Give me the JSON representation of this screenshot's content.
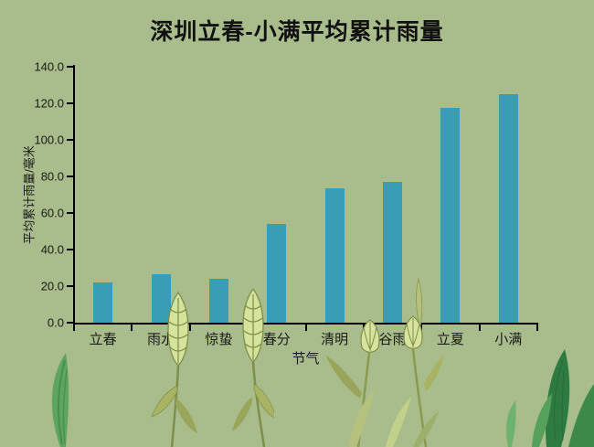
{
  "title": "深圳立春-小满平均累计雨量",
  "colors": {
    "background": "#a9bc8b",
    "bar": "#3a9db6",
    "axis": "#000000",
    "text": "#1a1a1a"
  },
  "decorations": [
    "grass-blade-left",
    "wheat-stalks-center",
    "plant-stems-right",
    "leaves-bottom-right"
  ],
  "chart_data": {
    "type": "bar",
    "title": "深圳立春-小满平均累计雨量",
    "xlabel": "节气",
    "ylabel": "平均累计雨量/毫米",
    "categories": [
      "立春",
      "雨水",
      "惊蛰",
      "春分",
      "清明",
      "谷雨",
      "立夏",
      "小满"
    ],
    "values": [
      21.9,
      26.5,
      24.1,
      54.0,
      73.5,
      77.0,
      117.5,
      125.0
    ],
    "ylim": [
      0,
      140
    ],
    "ytick_step": 20,
    "ytick_labels": [
      "0.0",
      "20.0",
      "40.0",
      "60.0",
      "80.0",
      "100.0",
      "120.0",
      "140.0"
    ],
    "grid": false,
    "legend": "none",
    "bar_color": "#3a9db6",
    "background_color": "#a9bc8b"
  }
}
